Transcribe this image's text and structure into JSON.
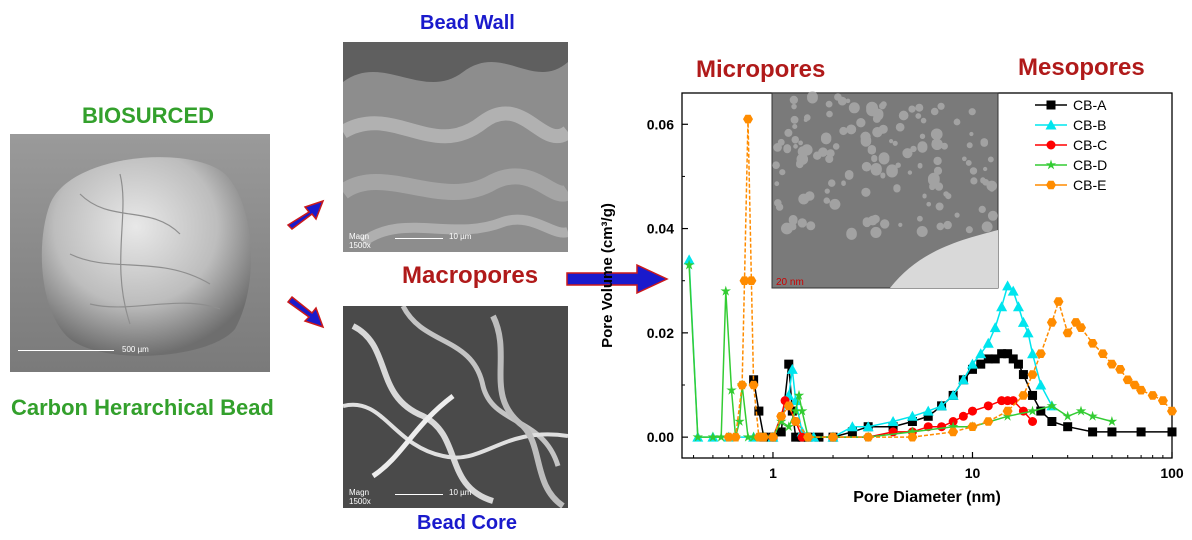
{
  "labels": {
    "biosurced": "BIOSURCED",
    "carbon_bead": "Carbon Herarchical Bead",
    "bead_wall": "Bead Wall",
    "bead_core": "Bead Core",
    "macropores": "Macropores",
    "micropores": "Micropores",
    "mesopores": "Mesopores"
  },
  "images": {
    "bead_scale": "500 µm",
    "wall_scale": "10 µm",
    "core_scale": "10 µm",
    "wall_mag": "Magn 1500x",
    "core_mag": "Magn 1500x",
    "tem_scale": "20 nm"
  },
  "colors": {
    "green": "#33a02c",
    "blue": "#1a1acc",
    "red": "#b01a1a",
    "arrow_fill": "#1a1acc",
    "arrow_border": "#cc1a1a"
  },
  "chart_data": {
    "type": "line",
    "xlabel": "Pore Diameter (nm)",
    "ylabel": "Pore Volume (cm³/g)",
    "xscale": "log",
    "xlim": [
      0.35,
      100
    ],
    "ylim": [
      -0.004,
      0.066
    ],
    "xticks": [
      1,
      10,
      100
    ],
    "xtick_labels": [
      "1",
      "10",
      "100"
    ],
    "yticks": [
      0.0,
      0.02,
      0.04,
      0.06
    ],
    "ytick_labels": [
      "0.00",
      "0.02",
      "0.04",
      "0.06"
    ],
    "legend_position": "top-right",
    "series": [
      {
        "name": "CB-A",
        "color": "#000000",
        "marker": "square",
        "x": [
          0.8,
          0.85,
          0.9,
          1.0,
          1.1,
          1.2,
          1.25,
          1.3,
          1.4,
          1.5,
          1.7,
          2.0,
          2.5,
          3,
          4,
          5,
          6,
          7,
          8,
          9,
          10,
          11,
          12,
          13,
          14,
          15,
          16,
          17,
          18,
          20,
          22,
          25,
          30,
          40,
          50,
          70,
          100
        ],
        "y": [
          0.011,
          0.005,
          0.0,
          0.0,
          0.001,
          0.014,
          0.005,
          0.0,
          0.0,
          0.0,
          0.0,
          0.0,
          0.001,
          0.002,
          0.002,
          0.003,
          0.004,
          0.006,
          0.008,
          0.011,
          0.013,
          0.014,
          0.015,
          0.015,
          0.016,
          0.016,
          0.015,
          0.014,
          0.012,
          0.008,
          0.005,
          0.003,
          0.002,
          0.001,
          0.001,
          0.001,
          0.001
        ]
      },
      {
        "name": "CB-B",
        "color": "#00e5ee",
        "marker": "triangle",
        "x": [
          0.38,
          0.42,
          0.5,
          0.6,
          0.8,
          1.0,
          1.2,
          1.25,
          1.3,
          1.4,
          1.6,
          2.0,
          2.5,
          3,
          4,
          5,
          6,
          7,
          8,
          9,
          10,
          11,
          12,
          13,
          14,
          15,
          16,
          17,
          18,
          19,
          20,
          22,
          25
        ],
        "y": [
          0.034,
          0.0,
          0.0,
          0.0,
          0.0,
          0.0,
          0.008,
          0.013,
          0.007,
          0.001,
          0.0,
          0.0,
          0.002,
          0.002,
          0.003,
          0.004,
          0.005,
          0.006,
          0.008,
          0.011,
          0.014,
          0.016,
          0.018,
          0.021,
          0.025,
          0.029,
          0.028,
          0.025,
          0.022,
          0.02,
          0.016,
          0.01,
          0.006
        ]
      },
      {
        "name": "CB-C",
        "color": "#ff0000",
        "marker": "circle",
        "x": [
          1.0,
          1.1,
          1.15,
          1.2,
          1.3,
          1.4,
          1.5,
          2.0,
          3,
          4,
          5,
          6,
          7,
          8,
          9,
          10,
          12,
          14,
          15,
          16,
          18,
          20
        ],
        "y": [
          0.0,
          0.004,
          0.007,
          0.006,
          0.003,
          0.0,
          0.0,
          0.0,
          0.0,
          0.001,
          0.001,
          0.002,
          0.002,
          0.003,
          0.004,
          0.005,
          0.006,
          0.007,
          0.007,
          0.007,
          0.005,
          0.003
        ]
      },
      {
        "name": "CB-D",
        "color": "#33cc33",
        "marker": "star",
        "x": [
          0.38,
          0.42,
          0.5,
          0.55,
          0.58,
          0.62,
          0.65,
          0.68,
          0.7,
          0.75,
          0.8,
          0.9,
          1.0,
          1.1,
          1.2,
          1.3,
          1.35,
          1.4,
          1.5,
          2.0,
          3,
          5,
          8,
          10,
          15,
          20,
          25,
          30,
          35,
          40,
          50
        ],
        "y": [
          0.033,
          0.0,
          0.0,
          0.0,
          0.028,
          0.009,
          0.0,
          0.003,
          0.01,
          0.0,
          0.0,
          0.0,
          0.0,
          0.003,
          0.002,
          0.005,
          0.008,
          0.005,
          0.0,
          0.0,
          0.0,
          0.001,
          0.002,
          0.002,
          0.004,
          0.005,
          0.006,
          0.004,
          0.005,
          0.004,
          0.003
        ]
      },
      {
        "name": "CB-E",
        "color": "#ff8c00",
        "marker": "hexagon",
        "x": [
          0.6,
          0.65,
          0.7,
          0.72,
          0.75,
          0.78,
          0.8,
          0.85,
          0.9,
          1.0,
          1.1,
          1.2,
          1.3,
          1.5,
          2.0,
          3,
          5,
          8,
          10,
          12,
          15,
          18,
          20,
          22,
          25,
          27,
          30,
          33,
          35,
          40,
          45,
          50,
          55,
          60,
          65,
          70,
          80,
          90,
          100
        ],
        "y": [
          0.0,
          0.0,
          0.01,
          0.03,
          0.061,
          0.03,
          0.01,
          0.0,
          0.0,
          0.0,
          0.004,
          0.006,
          0.003,
          0.0,
          0.0,
          0.0,
          0.0,
          0.001,
          0.002,
          0.003,
          0.005,
          0.008,
          0.012,
          0.016,
          0.022,
          0.026,
          0.02,
          0.022,
          0.021,
          0.018,
          0.016,
          0.014,
          0.013,
          0.011,
          0.01,
          0.009,
          0.008,
          0.007,
          0.005
        ]
      }
    ]
  }
}
